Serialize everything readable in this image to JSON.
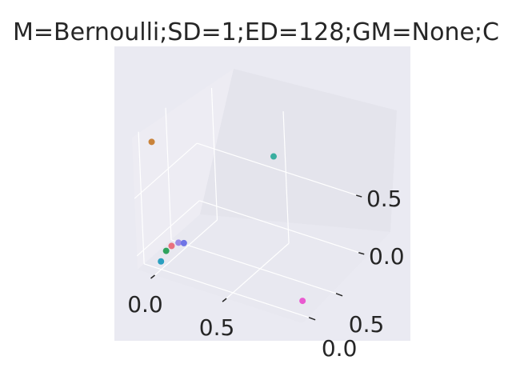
{
  "chart_data": {
    "type": "scatter3d",
    "title": "M=Bernoulli;SD=1;ED=128;GM=None;C",
    "xlabel": "",
    "ylabel": "",
    "zlabel": "",
    "x_ticks": [
      "0.0",
      "0.5"
    ],
    "y_ticks": [
      "0.0",
      "0.5"
    ],
    "z_ticks": [
      "0.0",
      "0.5"
    ],
    "grid": true,
    "background": "#eaeaf2",
    "points": [
      {
        "x": -0.05,
        "y": 0.05,
        "z": 0.95,
        "color": "#c9833a"
      },
      {
        "x": 0.45,
        "y": 0.95,
        "z": 0.65,
        "color": "#39aea0"
      },
      {
        "x": 0.05,
        "y": 0.2,
        "z": 0.05,
        "color": "#9b8be6"
      },
      {
        "x": 0.08,
        "y": 0.22,
        "z": 0.05,
        "color": "#6f74e6"
      },
      {
        "x": 0.02,
        "y": 0.15,
        "z": 0.03,
        "color": "#e8707f"
      },
      {
        "x": 0.0,
        "y": 0.1,
        "z": 0.0,
        "color": "#2fa35d"
      },
      {
        "x": 0.0,
        "y": 0.0,
        "z": -0.05,
        "color": "#2a9fc0"
      },
      {
        "x": 0.95,
        "y": 0.1,
        "z": -0.05,
        "color": "#e959d0"
      }
    ]
  }
}
